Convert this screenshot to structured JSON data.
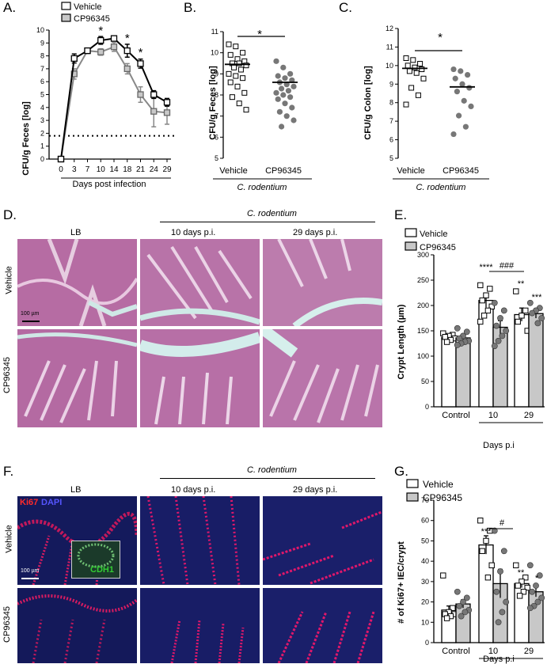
{
  "panels": {
    "A": {
      "label": "A.",
      "legend": [
        "Vehicle",
        "CP96345"
      ],
      "ylabel": "CFU/g Feces [log]",
      "xlabel": "Days post infection",
      "x_ticks": [
        "0",
        "3",
        "7",
        "10",
        "14",
        "18",
        "21",
        "24",
        "29"
      ],
      "y_ticks": [
        "0",
        "1",
        "2",
        "3",
        "4",
        "5",
        "6",
        "7",
        "8",
        "9",
        "10"
      ],
      "sig": [
        "*",
        "*",
        "*"
      ]
    },
    "B": {
      "label": "B.",
      "ylabel": "CFU/g Feces [log]",
      "groups": [
        "Vehicle",
        "CP96345"
      ],
      "group_caption": "C. rodentium",
      "y_ticks": [
        "5",
        "6",
        "7",
        "8",
        "9",
        "10",
        "11"
      ],
      "sig": "*"
    },
    "C": {
      "label": "C.",
      "ylabel": "CFU/g Colon [log]",
      "groups": [
        "Vehicle",
        "CP96345"
      ],
      "group_caption": "C. rodentium",
      "y_ticks": [
        "5",
        "6",
        "7",
        "8",
        "9",
        "10",
        "11",
        "12"
      ],
      "sig": "*"
    },
    "D": {
      "label": "D.",
      "header": "C. rodentium",
      "cols": [
        "LB",
        "10 days p.i.",
        "29 days p.i."
      ],
      "rows": [
        "Vehicle",
        "CP96345"
      ],
      "scale": "100 µm"
    },
    "E": {
      "label": "E.",
      "legend": [
        "Vehicle",
        "CP96345"
      ],
      "ylabel": "Crypt Length (µm)",
      "categories": [
        "Control",
        "10",
        "29"
      ],
      "xlabel": "Days p.i",
      "y_ticks": [
        "0",
        "50",
        "100",
        "150",
        "200",
        "250",
        "300"
      ],
      "sig": [
        "****",
        "###",
        "**",
        "***"
      ]
    },
    "F": {
      "label": "F.",
      "header": "C. rodentium",
      "cols": [
        "LB",
        "10 days p.i.",
        "29 days p.i."
      ],
      "rows": [
        "Vehicle",
        "CP96345"
      ],
      "stain1": "Ki67",
      "stain2": "DAPI",
      "inset": "CDH1",
      "scale": "100 µm"
    },
    "G": {
      "label": "G.",
      "legend": [
        "Vehicle",
        "CP96345"
      ],
      "ylabel": "# of Ki67+ IEC/crypt",
      "categories": [
        "Control",
        "10",
        "29"
      ],
      "xlabel": "Days p.i",
      "y_ticks": [
        "0",
        "10",
        "20",
        "30",
        "40",
        "50",
        "60",
        "70"
      ],
      "sig": [
        "***",
        "#",
        "**",
        "*"
      ]
    }
  },
  "chart_data": [
    {
      "type": "line",
      "x": [
        0,
        3,
        7,
        10,
        14,
        18,
        21,
        24,
        29
      ],
      "series": [
        {
          "name": "Vehicle",
          "values": [
            0,
            7.8,
            8.4,
            9.2,
            9.35,
            8.4,
            7.4,
            5.0,
            4.4
          ],
          "err": [
            0,
            0.35,
            0.2,
            0.3,
            0.15,
            0.5,
            0.35,
            0.3,
            0.3
          ]
        },
        {
          "name": "CP96345",
          "values": [
            0,
            6.6,
            8.4,
            8.3,
            8.7,
            7.0,
            5.0,
            3.7,
            3.6
          ],
          "err": [
            0,
            0.4,
            0.2,
            0.25,
            0.35,
            0.4,
            0.6,
            1.2,
            0.9
          ]
        }
      ],
      "detection_limit": 1.8,
      "ylim": [
        0,
        10
      ]
    },
    {
      "type": "scatter",
      "categories": [
        "Vehicle",
        "CP96345"
      ],
      "ylim": [
        5,
        11
      ],
      "means": [
        9.45,
        8.6
      ],
      "points": [
        [
          10.4,
          10.3,
          10.0,
          9.9,
          9.7,
          9.6,
          9.5,
          9.5,
          9.4,
          9.3,
          9.2,
          9.0,
          8.9,
          8.8,
          8.6,
          8.4,
          8.1,
          7.9,
          7.6,
          7.3
        ],
        [
          9.6,
          9.3,
          9.0,
          8.9,
          8.8,
          8.7,
          8.6,
          8.5,
          8.4,
          8.3,
          8.2,
          8.1,
          8.0,
          7.9,
          7.8,
          7.6,
          7.4,
          7.2,
          7.0,
          6.8,
          6.5
        ]
      ]
    },
    {
      "type": "scatter",
      "categories": [
        "Vehicle",
        "CP96345"
      ],
      "ylim": [
        5,
        12
      ],
      "means": [
        9.85,
        8.85
      ],
      "points": [
        [
          10.4,
          10.3,
          10.1,
          10.0,
          9.9,
          9.8,
          9.7,
          9.6,
          9.3,
          8.8,
          8.4,
          7.9
        ],
        [
          9.8,
          9.7,
          9.5,
          9.3,
          9.0,
          8.8,
          8.6,
          8.1,
          7.8,
          7.3,
          6.7,
          6.3
        ]
      ]
    },
    {
      "type": "bar",
      "categories": [
        "Control",
        "10",
        "29"
      ],
      "ylim": [
        0,
        300
      ],
      "series": [
        {
          "name": "Vehicle",
          "values": [
            137,
            210,
            182
          ],
          "err": [
            5,
            14,
            13
          ],
          "points": [
            [
              145,
              142,
              140,
              138,
              135,
              132,
              128
            ],
            [
              240,
              233,
              220,
              210,
              198,
              190,
              180,
              168
            ],
            [
              228,
              190,
              180,
              168,
              150
            ]
          ]
        },
        {
          "name": "CP96345",
          "values": [
            136,
            157,
            184
          ],
          "err": [
            5,
            13,
            9
          ],
          "points": [
            [
              155,
              148,
              140,
              135,
              130,
              128,
              125,
              122
            ],
            [
              205,
              190,
              175,
              160,
              150,
              140,
              130,
              120
            ],
            [
              205,
              195,
              190,
              185,
              175,
              165
            ]
          ]
        }
      ]
    },
    {
      "type": "bar",
      "categories": [
        "Control",
        "10",
        "29"
      ],
      "ylim": [
        0,
        70
      ],
      "series": [
        {
          "name": "Vehicle",
          "values": [
            16,
            48,
            29
          ],
          "err": [
            2,
            4.5,
            2
          ],
          "points": [
            [
              33,
              17,
              15,
              14,
              14,
              13,
              12
            ],
            [
              60,
              55,
              50,
              45,
              38,
              32
            ],
            [
              38,
              32,
              30,
              28,
              27,
              25,
              23
            ]
          ]
        },
        {
          "name": "CP96345",
          "values": [
            19,
            29,
            25
          ],
          "err": [
            2,
            7,
            2.5
          ],
          "points": [
            [
              25,
              22,
              20,
              18,
              16,
              15,
              13
            ],
            [
              55,
              45,
              35,
              25,
              20,
              15,
              10
            ],
            [
              38,
              33,
              28,
              25,
              22,
              20,
              18,
              17
            ]
          ]
        }
      ]
    }
  ]
}
